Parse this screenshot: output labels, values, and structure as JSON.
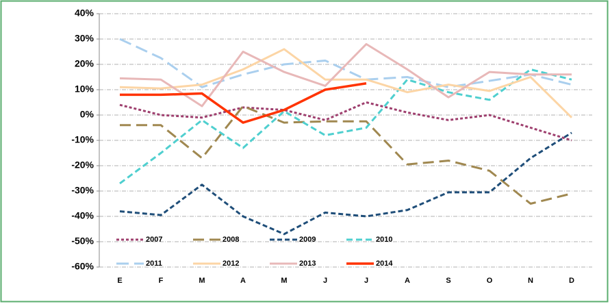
{
  "chart_data": {
    "type": "line",
    "categories": [
      "E",
      "F",
      "M",
      "A",
      "M",
      "J",
      "J",
      "A",
      "S",
      "O",
      "N",
      "D"
    ],
    "series": [
      {
        "name": "2007",
        "color": "#9e3f6e",
        "values": [
          4,
          0,
          -1,
          3,
          2,
          -2,
          5,
          1,
          -2,
          0,
          -5,
          -10
        ]
      },
      {
        "name": "2008",
        "color": "#a08850",
        "values": [
          -4,
          -4,
          -17,
          3.5,
          -3,
          -2.5,
          -2.5,
          -19.5,
          -18,
          -22,
          -35,
          -31
        ]
      },
      {
        "name": "2009",
        "color": "#1f4e79",
        "values": [
          -38,
          -39.5,
          -27.5,
          -40,
          -47,
          -38.5,
          -40,
          -37.5,
          -30.5,
          -30.5,
          -17,
          -7
        ]
      },
      {
        "name": "2010",
        "color": "#4fcfcf",
        "values": [
          -27,
          -15,
          -2,
          -13,
          1.5,
          -8,
          -5,
          14,
          9,
          6,
          18,
          14
        ]
      },
      {
        "name": "2011",
        "color": "#aacfee",
        "values": [
          30,
          22.5,
          11,
          16,
          20,
          21.5,
          14,
          15,
          11,
          13.5,
          16,
          12
        ]
      },
      {
        "name": "2012",
        "color": "#fcd5a5",
        "values": [
          11,
          10.5,
          12,
          18,
          26,
          14,
          14,
          9,
          12,
          9.5,
          15,
          -1
        ]
      },
      {
        "name": "2013",
        "color": "#e8b8b8",
        "values": [
          14.5,
          14,
          3.5,
          25,
          17,
          11.5,
          28,
          18,
          7,
          17,
          16,
          16
        ]
      },
      {
        "name": "2014",
        "color": "#ff3300",
        "values": [
          8,
          8,
          8.5,
          -3,
          2,
          10,
          12.5,
          null,
          null,
          null,
          null,
          null
        ]
      }
    ],
    "ylim": [
      -60,
      40
    ],
    "yticks": [
      {
        "value": -60,
        "label": "-60%"
      },
      {
        "value": -50,
        "label": "-50%"
      },
      {
        "value": -40,
        "label": "-40%"
      },
      {
        "value": -30,
        "label": "-30%"
      },
      {
        "value": -20,
        "label": "-20%"
      },
      {
        "value": -10,
        "label": "-10%"
      },
      {
        "value": 0,
        "label": "0%"
      },
      {
        "value": 10,
        "label": "10%"
      },
      {
        "value": 20,
        "label": "20%"
      },
      {
        "value": 30,
        "label": "30%"
      },
      {
        "value": 40,
        "label": "40%"
      }
    ],
    "grid": true,
    "legend": "lower left"
  }
}
